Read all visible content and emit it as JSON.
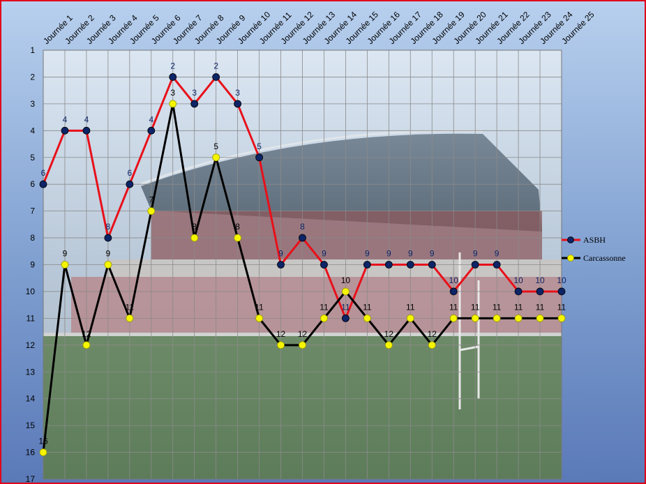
{
  "chart_data": {
    "type": "line",
    "categories": [
      "Journée 1",
      "Journée 2",
      "Journée 3",
      "Journée 4",
      "Journée 5",
      "Journée 6",
      "Journée 7",
      "Journée 8",
      "Journée 9",
      "Journée 10",
      "Journée 11",
      "Journée 12",
      "Journée 13",
      "Journée 14",
      "Journée 15",
      "Journée 16",
      "Journée 17",
      "Journée 18",
      "Journée 19",
      "Journée 20",
      "Journée 21",
      "Journée 22",
      "Journée 23",
      "Journée 24",
      "Journée 25"
    ],
    "series": [
      {
        "name": "ASBH",
        "color": "#e8101a",
        "marker_color": "#0d2466",
        "label_color": "#0d2466",
        "values": [
          6,
          4,
          4,
          8,
          6,
          4,
          2,
          3,
          2,
          3,
          5,
          9,
          8,
          9,
          11,
          9,
          9,
          9,
          9,
          10,
          9,
          9,
          10,
          10,
          10
        ]
      },
      {
        "name": "Carcassonne",
        "color": "#000000",
        "marker_color": "#f5f500",
        "label_color": "#000000",
        "values": [
          16,
          9,
          12,
          9,
          11,
          7,
          3,
          8,
          5,
          8,
          11,
          12,
          12,
          11,
          10,
          11,
          12,
          11,
          12,
          11,
          11,
          11,
          11,
          11,
          11
        ]
      }
    ],
    "y_ticks": [
      1,
      2,
      3,
      4,
      5,
      6,
      7,
      8,
      9,
      10,
      11,
      12,
      13,
      14,
      15,
      16,
      17
    ],
    "ylim": [
      1,
      17
    ],
    "y_inverted": true,
    "grid": true,
    "legend_position": "right"
  }
}
